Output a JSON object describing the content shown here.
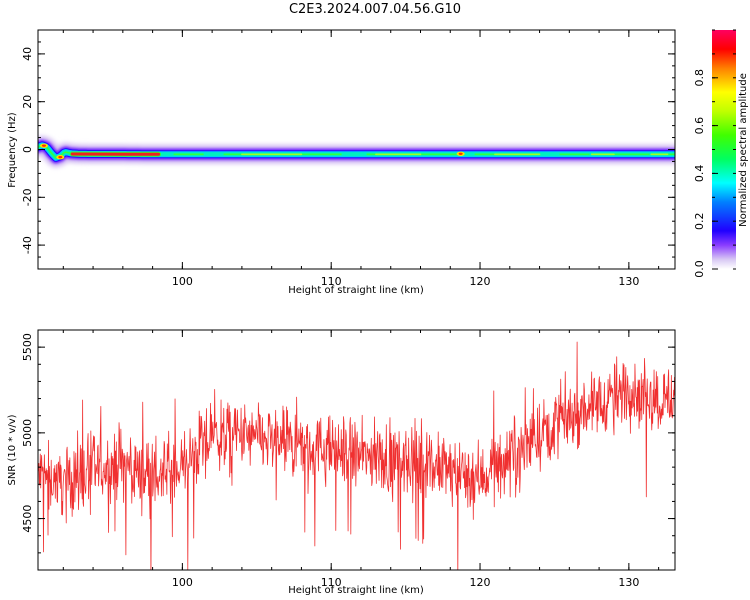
{
  "title": "C2E3.2024.007.04.56.G10",
  "chart_data": [
    {
      "type": "heatmap",
      "xlabel": "Height of straight line (km)",
      "ylabel": "Frequency (Hz)",
      "xlim": [
        90.3,
        133.1
      ],
      "ylim": [
        -50,
        50
      ],
      "xticks": [
        100,
        110,
        120,
        130
      ],
      "yticks": [
        -40,
        -20,
        0,
        20,
        40
      ],
      "ridge": {
        "x": [
          90.3,
          90.6,
          90.9,
          91.2,
          91.5,
          91.8,
          92.1,
          92.5,
          93.0,
          94.0,
          96.0,
          98.0,
          100.0,
          105.0,
          110.0,
          115.0,
          120.0,
          125.0,
          130.0,
          133.1
        ],
        "y": [
          1.0,
          1.8,
          0.9,
          -1.5,
          -3.5,
          -2.8,
          -1.0,
          -1.6,
          -1.8,
          -1.9,
          -1.9,
          -2.0,
          -2.0,
          -2.0,
          -2.0,
          -2.0,
          -2.0,
          -2.0,
          -2.0,
          -2.0
        ]
      },
      "colorbar": {
        "label": "Normalized spectral amplitude",
        "ticks": [
          "0.0",
          "0.2",
          "0.4",
          "0.6",
          "0.8"
        ],
        "range": [
          0,
          1
        ]
      }
    },
    {
      "type": "line",
      "xlabel": "Height of straight line (km)",
      "ylabel": "SNR (10 * v/v)",
      "xlim": [
        90.3,
        133.1
      ],
      "ylim": [
        4200,
        5600
      ],
      "xticks": [
        100,
        110,
        120,
        130
      ],
      "yticks": [
        4500,
        5000,
        5500
      ],
      "color": "#f03030",
      "trend": {
        "x": [
          90.3,
          92,
          94,
          96,
          98,
          100,
          102,
          104,
          106,
          108,
          110,
          112,
          114,
          116,
          118,
          120,
          122,
          124,
          126,
          128,
          130,
          132,
          133.1
        ],
        "y": [
          4750,
          4720,
          4780,
          4820,
          4740,
          4800,
          4980,
          4980,
          4950,
          4920,
          4900,
          4860,
          4850,
          4820,
          4780,
          4740,
          4860,
          5000,
          5100,
          5180,
          5250,
          5200,
          5200
        ]
      },
      "noise_amplitude": 140,
      "samples": 1400
    }
  ]
}
